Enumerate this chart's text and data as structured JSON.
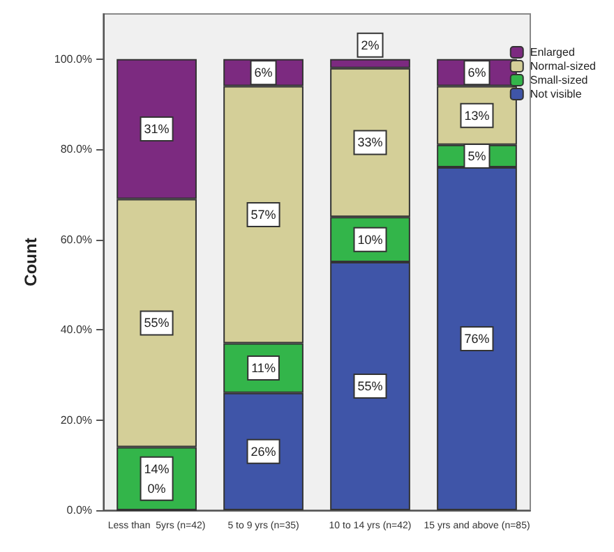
{
  "chart_data": {
    "type": "bar",
    "stacked": true,
    "ylabel": "Count",
    "categories": [
      "Less than  5yrs (n=42)",
      "5 to 9 yrs (n=35)",
      "10 to 14 yrs (n=42)",
      "15 yrs and above (n=85)"
    ],
    "series": [
      {
        "name": "Not visible",
        "color": "#3f55a8",
        "values": [
          0,
          26,
          55,
          76
        ],
        "value_labels": [
          null,
          "26%",
          "55%",
          "76%"
        ]
      },
      {
        "name": "Small-sized",
        "color": "#33b54a",
        "values": [
          14,
          11,
          10,
          5
        ],
        "value_labels": [
          "14%\n0%",
          "11%",
          "10%",
          "5%"
        ]
      },
      {
        "name": "Normal-sized",
        "color": "#d4cf98",
        "values": [
          55,
          57,
          33,
          13
        ],
        "value_labels": [
          "55%",
          "57%",
          "33%",
          "13%"
        ]
      },
      {
        "name": "Enlarged",
        "color": "#7c2a80",
        "values": [
          31,
          6,
          2,
          6
        ],
        "value_labels": [
          "31%",
          "6%",
          "2%",
          "6%"
        ]
      }
    ],
    "ylim": [
      0,
      110
    ],
    "yticks": [
      {
        "value": 0,
        "label": "0.0%"
      },
      {
        "value": 20,
        "label": "20.0%"
      },
      {
        "value": 40,
        "label": "40.0%"
      },
      {
        "value": 60,
        "label": "60.0%"
      },
      {
        "value": 80,
        "label": "80.0%"
      },
      {
        "value": 100,
        "label": "100.0%"
      }
    ],
    "grid": false,
    "legend": "top right"
  }
}
